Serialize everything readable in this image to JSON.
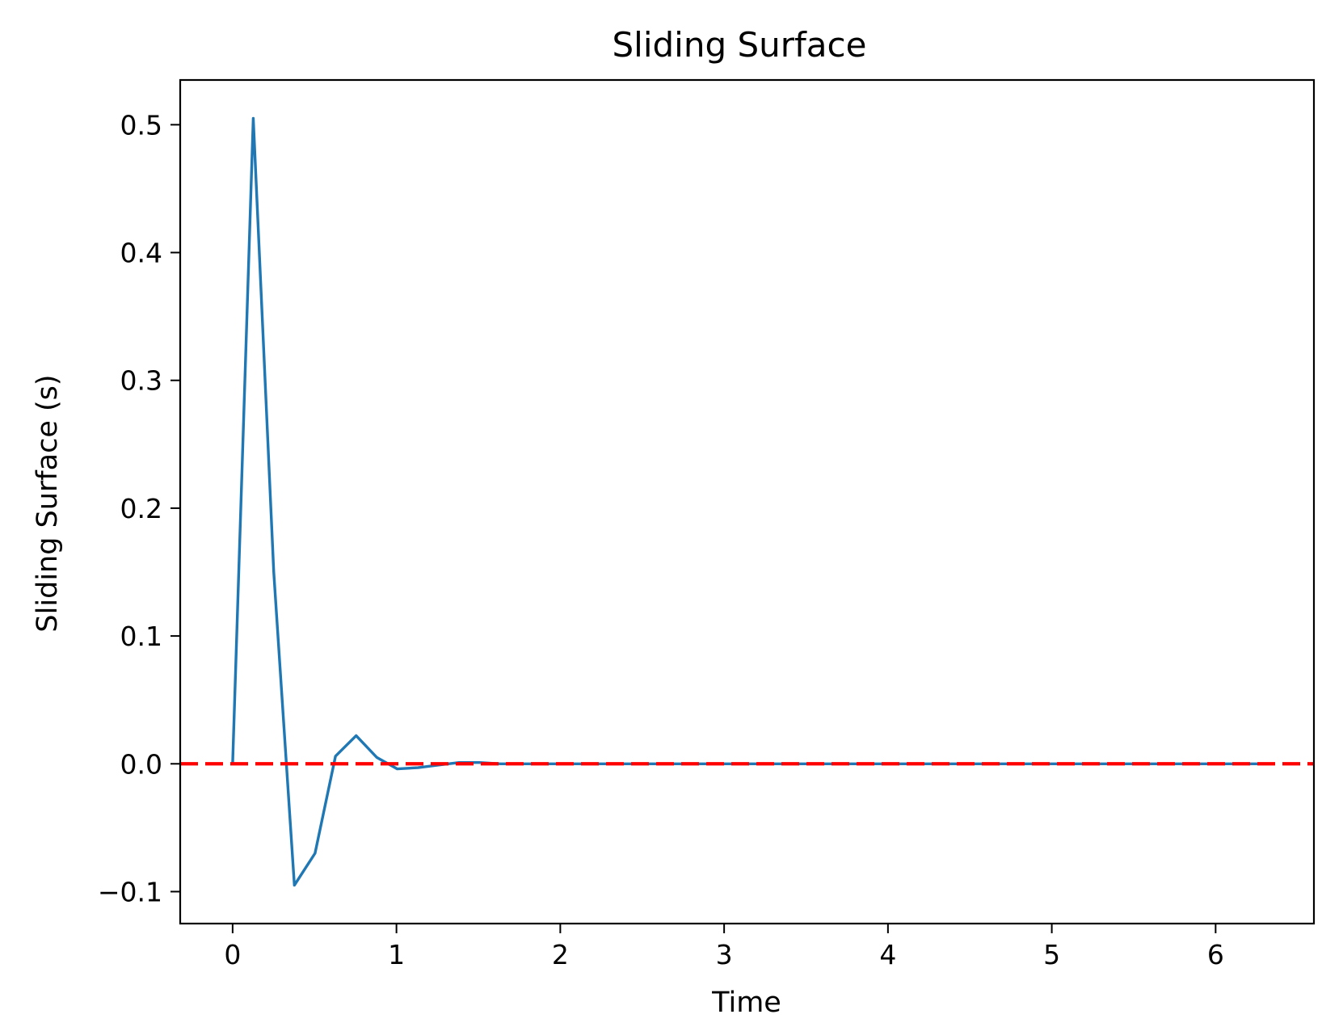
{
  "chart_data": {
    "type": "line",
    "title": "Sliding Surface",
    "xlabel": "Time",
    "ylabel": "Sliding Surface (s)",
    "xlim": [
      -0.32,
      6.6
    ],
    "ylim": [
      -0.125,
      0.535
    ],
    "xticks": [
      0,
      1,
      2,
      3,
      4,
      5,
      6
    ],
    "yticks": [
      -0.1,
      0.0,
      0.1,
      0.2,
      0.3,
      0.4,
      0.5
    ],
    "ytick_labels": [
      "−0.1",
      "0.0",
      "0.1",
      "0.2",
      "0.3",
      "0.4",
      "0.5"
    ],
    "grid": false,
    "series": [
      {
        "color": "#1f77b4",
        "style": "solid",
        "x": [
          0.0,
          0.126,
          0.251,
          0.377,
          0.503,
          0.628,
          0.754,
          0.88,
          1.005,
          1.131,
          1.257,
          1.382,
          1.508,
          1.634,
          1.759,
          1.885,
          2.011,
          2.136,
          2.262,
          2.388,
          2.513,
          2.639,
          2.765,
          2.89,
          3.016,
          3.142,
          3.267,
          3.393,
          3.519,
          3.644,
          3.77,
          3.896,
          4.021,
          4.147,
          4.273,
          4.398,
          4.524,
          4.65,
          4.775,
          4.901,
          5.027,
          5.152,
          5.278,
          5.404,
          5.529,
          5.655,
          5.781,
          5.906,
          6.032,
          6.158,
          6.283
        ],
        "y": [
          0.0,
          0.505,
          0.15,
          -0.095,
          -0.07,
          0.006,
          0.022,
          0.005,
          -0.004,
          -0.003,
          -0.001,
          0.001,
          0.001,
          0.0,
          0.0,
          0.0,
          0.0,
          0.0,
          0.0,
          0.0,
          0.0,
          0.0,
          0.0,
          0.0,
          0.0,
          0.0,
          0.0,
          0.0,
          0.0,
          0.0,
          0.0,
          0.0,
          0.0,
          0.0,
          0.0,
          0.0,
          0.0,
          0.0,
          0.0,
          0.0,
          0.0,
          0.0,
          0.0,
          0.0,
          0.0,
          0.0,
          0.0,
          0.0,
          0.0,
          0.0,
          0.0
        ]
      },
      {
        "color": "#ff0000",
        "style": "dashed",
        "x": [
          -0.32,
          6.6
        ],
        "y": [
          0.0,
          0.0
        ]
      }
    ]
  }
}
